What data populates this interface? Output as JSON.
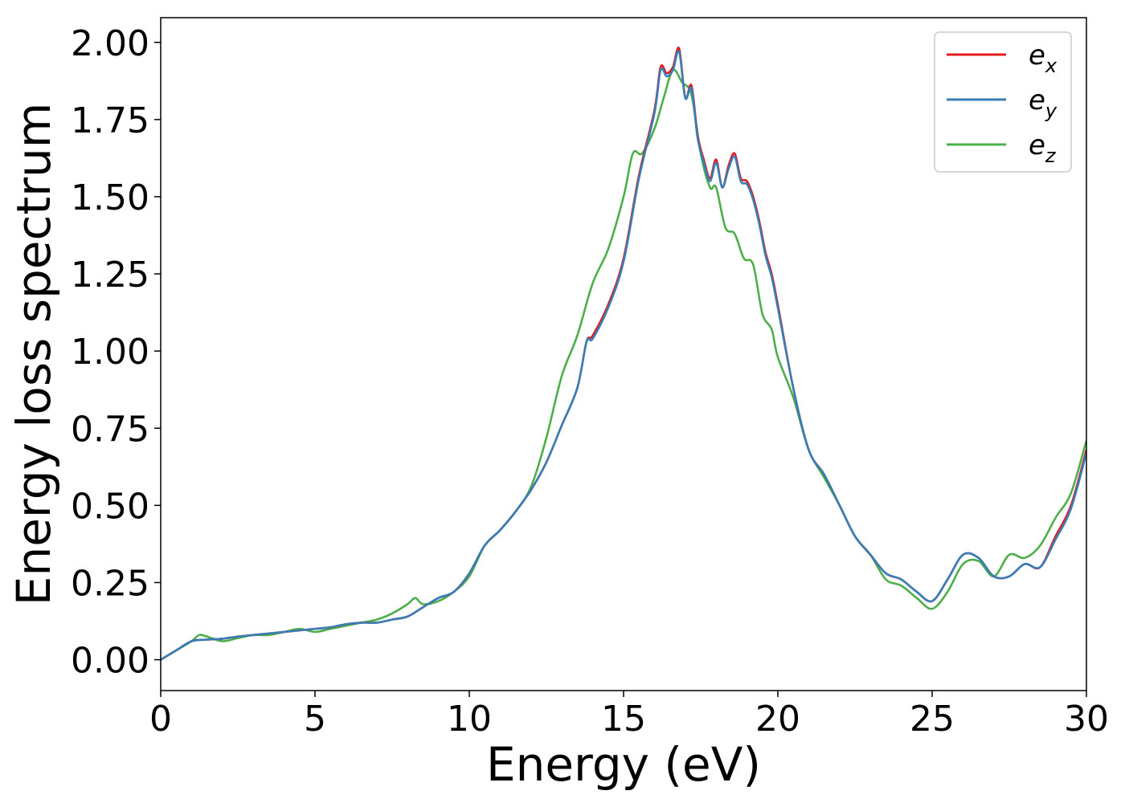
{
  "chart_data": {
    "type": "line",
    "title": "",
    "xlabel": "Energy (eV)",
    "ylabel": "Energy loss spectrum",
    "xlim": [
      0,
      30
    ],
    "ylim": [
      -0.1,
      2.08
    ],
    "xticks": [
      0,
      5,
      10,
      15,
      20,
      25,
      30
    ],
    "xtick_labels": [
      "0",
      "5",
      "10",
      "15",
      "20",
      "25",
      "30"
    ],
    "yticks": [
      0,
      0.25,
      0.5,
      0.75,
      1.0,
      1.25,
      1.5,
      1.75,
      2.0
    ],
    "ytick_labels": [
      "0.00",
      "0.25",
      "0.50",
      "0.75",
      "1.00",
      "1.25",
      "1.50",
      "1.75",
      "2.00"
    ],
    "grid": false,
    "legend_position": "top-right",
    "series": [
      {
        "name": "e",
        "subscript": "x",
        "color": "#e41a1c",
        "x": [
          0,
          0.5,
          1,
          1.5,
          2,
          2.5,
          3,
          3.5,
          4,
          4.5,
          5,
          5.5,
          6,
          6.5,
          7,
          7.5,
          8,
          8.5,
          9,
          9.5,
          10,
          10.5,
          11,
          11.5,
          12,
          12.5,
          13,
          13.5,
          13.8,
          14,
          14.5,
          15,
          15.5,
          16,
          16.2,
          16.4,
          16.6,
          16.8,
          17,
          17.2,
          17.4,
          17.6,
          17.8,
          18,
          18.2,
          18.4,
          18.6,
          18.8,
          19,
          19.2,
          19.4,
          19.6,
          19.8,
          20,
          20.5,
          21,
          21.5,
          22,
          22.5,
          23,
          23.5,
          24,
          24.5,
          25,
          25.5,
          26,
          26.5,
          27,
          27.5,
          28,
          28.5,
          29,
          29.5,
          30
        ],
        "values": [
          0,
          0.03,
          0.06,
          0.065,
          0.068,
          0.075,
          0.08,
          0.085,
          0.09,
          0.095,
          0.1,
          0.105,
          0.115,
          0.12,
          0.12,
          0.13,
          0.14,
          0.17,
          0.2,
          0.22,
          0.28,
          0.37,
          0.42,
          0.48,
          0.55,
          0.64,
          0.76,
          0.88,
          1.03,
          1.05,
          1.15,
          1.3,
          1.57,
          1.78,
          1.92,
          1.9,
          1.92,
          1.98,
          1.82,
          1.86,
          1.7,
          1.62,
          1.56,
          1.62,
          1.53,
          1.6,
          1.64,
          1.56,
          1.55,
          1.5,
          1.42,
          1.32,
          1.25,
          1.15,
          0.88,
          0.68,
          0.6,
          0.5,
          0.4,
          0.34,
          0.28,
          0.26,
          0.22,
          0.19,
          0.26,
          0.34,
          0.33,
          0.27,
          0.27,
          0.31,
          0.3,
          0.4,
          0.5,
          0.68
        ]
      },
      {
        "name": "e",
        "subscript": "y",
        "color": "#377eb8",
        "x": [
          0,
          0.5,
          1,
          1.5,
          2,
          2.5,
          3,
          3.5,
          4,
          4.5,
          5,
          5.5,
          6,
          6.5,
          7,
          7.5,
          8,
          8.5,
          9,
          9.5,
          10,
          10.5,
          11,
          11.5,
          12,
          12.5,
          13,
          13.5,
          13.8,
          14,
          14.5,
          15,
          15.5,
          16,
          16.2,
          16.4,
          16.6,
          16.8,
          17,
          17.2,
          17.4,
          17.6,
          17.8,
          18,
          18.2,
          18.4,
          18.6,
          18.8,
          19,
          19.2,
          19.4,
          19.6,
          19.8,
          20,
          20.5,
          21,
          21.5,
          22,
          22.5,
          23,
          23.5,
          24,
          24.5,
          25,
          25.5,
          26,
          26.5,
          27,
          27.5,
          28,
          28.5,
          29,
          29.5,
          30
        ],
        "values": [
          0,
          0.03,
          0.06,
          0.065,
          0.068,
          0.075,
          0.08,
          0.085,
          0.09,
          0.095,
          0.1,
          0.105,
          0.115,
          0.12,
          0.12,
          0.13,
          0.14,
          0.17,
          0.2,
          0.22,
          0.28,
          0.37,
          0.42,
          0.48,
          0.55,
          0.64,
          0.76,
          0.88,
          1.03,
          1.04,
          1.14,
          1.29,
          1.56,
          1.77,
          1.91,
          1.89,
          1.91,
          1.97,
          1.82,
          1.85,
          1.69,
          1.61,
          1.55,
          1.61,
          1.53,
          1.59,
          1.63,
          1.55,
          1.54,
          1.49,
          1.41,
          1.31,
          1.24,
          1.14,
          0.88,
          0.68,
          0.6,
          0.5,
          0.4,
          0.34,
          0.28,
          0.26,
          0.22,
          0.19,
          0.26,
          0.34,
          0.33,
          0.27,
          0.27,
          0.31,
          0.3,
          0.39,
          0.49,
          0.67
        ]
      },
      {
        "name": "e",
        "subscript": "z",
        "color": "#4daf4a",
        "x": [
          0,
          0.5,
          1,
          1.25,
          1.5,
          2,
          2.5,
          3,
          3.5,
          4,
          4.5,
          5,
          5.5,
          6,
          6.5,
          7,
          7.5,
          8,
          8.25,
          8.5,
          9,
          9.5,
          10,
          10.5,
          11,
          11.5,
          12,
          12.5,
          13,
          13.5,
          14,
          14.5,
          15,
          15.3,
          15.6,
          16,
          16.3,
          16.6,
          16.9,
          17.2,
          17.5,
          17.8,
          18,
          18.3,
          18.6,
          18.9,
          19.2,
          19.5,
          19.8,
          20,
          20.5,
          21,
          21.5,
          22,
          22.5,
          23,
          23.5,
          24,
          24.5,
          25,
          25.5,
          26,
          26.5,
          27,
          27.5,
          28,
          28.5,
          29,
          29.5,
          30
        ],
        "values": [
          0,
          0.03,
          0.06,
          0.08,
          0.075,
          0.06,
          0.07,
          0.08,
          0.08,
          0.09,
          0.1,
          0.09,
          0.1,
          0.11,
          0.12,
          0.13,
          0.15,
          0.18,
          0.2,
          0.18,
          0.19,
          0.22,
          0.27,
          0.37,
          0.42,
          0.48,
          0.56,
          0.72,
          0.92,
          1.05,
          1.22,
          1.33,
          1.5,
          1.64,
          1.64,
          1.72,
          1.82,
          1.91,
          1.87,
          1.83,
          1.64,
          1.53,
          1.53,
          1.4,
          1.38,
          1.3,
          1.28,
          1.12,
          1.07,
          0.98,
          0.85,
          0.68,
          0.59,
          0.5,
          0.4,
          0.34,
          0.26,
          0.24,
          0.2,
          0.165,
          0.22,
          0.31,
          0.32,
          0.27,
          0.34,
          0.33,
          0.37,
          0.46,
          0.54,
          0.71
        ]
      }
    ]
  }
}
